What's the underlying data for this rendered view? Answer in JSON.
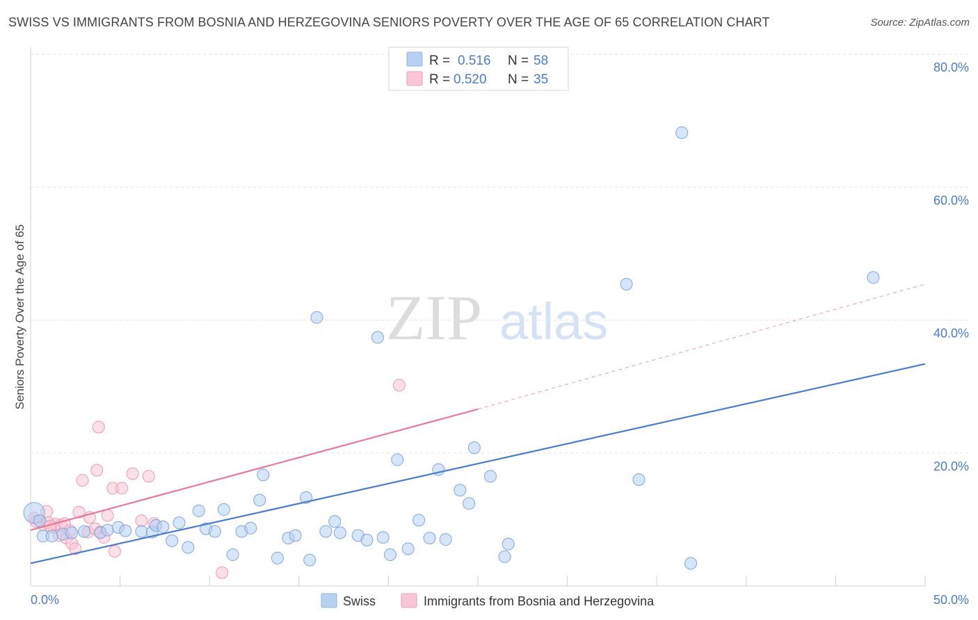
{
  "title": "SWISS VS IMMIGRANTS FROM BOSNIA AND HERZEGOVINA SENIORS POVERTY OVER THE AGE OF 65 CORRELATION CHART",
  "source": "Source: ZipAtlas.com",
  "watermark": {
    "zip": "ZIP",
    "atlas": "atlas"
  },
  "colors": {
    "swiss": "#4a7cc9",
    "bosnia": "#e8799d",
    "swiss_fill": "#b7d0f2",
    "bosnia_fill": "#f8c6d5",
    "axis_text": "#4a7cc9"
  },
  "chart_data": {
    "type": "scatter",
    "title": "SWISS VS IMMIGRANTS FROM BOSNIA AND HERZEGOVINA SENIORS POVERTY OVER THE AGE OF 65 CORRELATION CHART",
    "xlabel": "",
    "ylabel": "Seniors Poverty Over the Age of 65",
    "xlim": [
      0,
      50
    ],
    "ylim": [
      0,
      80
    ],
    "x_tick_labels": [
      "0.0%",
      "50.0%"
    ],
    "y_ticks": [
      20,
      40,
      60,
      80
    ],
    "y_tick_labels": [
      "20.0%",
      "40.0%",
      "60.0%",
      "80.0%"
    ],
    "grid": true,
    "legend_position": "top-center",
    "stats": [
      {
        "series": "Swiss",
        "r_label": "R =",
        "r": "0.516",
        "n_label": "N =",
        "n": "58"
      },
      {
        "series": "Immigrants from Bosnia and Herzegovina",
        "r_label": "R =",
        "r": "0.520",
        "n_label": "N =",
        "n": "35"
      }
    ],
    "series": [
      {
        "name": "Swiss",
        "color": "#4a7cc9",
        "trend": {
          "x": [
            0,
            50
          ],
          "y": [
            3.4,
            33.4
          ],
          "dashed_from": null
        },
        "points": [
          [
            0.2,
            11.0
          ],
          [
            0.7,
            7.5
          ],
          [
            1.2,
            7.5
          ],
          [
            1.8,
            7.8
          ],
          [
            2.3,
            8.0
          ],
          [
            3.0,
            8.2
          ],
          [
            3.9,
            8.0
          ],
          [
            4.3,
            8.4
          ],
          [
            4.9,
            8.8
          ],
          [
            5.3,
            8.3
          ],
          [
            6.2,
            8.2
          ],
          [
            6.8,
            8.1
          ],
          [
            7.0,
            9.1
          ],
          [
            7.4,
            8.9
          ],
          [
            7.9,
            6.8
          ],
          [
            8.3,
            9.5
          ],
          [
            8.8,
            5.8
          ],
          [
            9.4,
            11.3
          ],
          [
            9.8,
            8.6
          ],
          [
            10.3,
            8.2
          ],
          [
            10.8,
            11.5
          ],
          [
            11.3,
            4.7
          ],
          [
            11.8,
            8.2
          ],
          [
            12.3,
            8.7
          ],
          [
            12.8,
            12.9
          ],
          [
            13.0,
            16.7
          ],
          [
            13.8,
            4.2
          ],
          [
            14.4,
            7.2
          ],
          [
            14.8,
            7.6
          ],
          [
            15.4,
            13.3
          ],
          [
            15.6,
            3.9
          ],
          [
            16.0,
            40.4
          ],
          [
            16.5,
            8.2
          ],
          [
            17.0,
            9.7
          ],
          [
            17.3,
            8.0
          ],
          [
            18.3,
            7.6
          ],
          [
            18.8,
            6.9
          ],
          [
            19.4,
            37.4
          ],
          [
            19.7,
            7.3
          ],
          [
            20.1,
            4.7
          ],
          [
            20.5,
            19.0
          ],
          [
            21.1,
            5.6
          ],
          [
            21.7,
            9.9
          ],
          [
            22.3,
            7.2
          ],
          [
            22.8,
            17.5
          ],
          [
            23.2,
            7.0
          ],
          [
            24.0,
            14.4
          ],
          [
            24.5,
            12.4
          ],
          [
            24.8,
            20.8
          ],
          [
            25.7,
            16.5
          ],
          [
            26.5,
            4.4
          ],
          [
            26.7,
            6.3
          ],
          [
            33.3,
            45.4
          ],
          [
            34.0,
            16.0
          ],
          [
            36.4,
            68.2
          ],
          [
            36.9,
            3.4
          ],
          [
            47.1,
            46.4
          ],
          [
            0.5,
            9.8
          ]
        ]
      },
      {
        "name": "Immigrants from Bosnia and Herzegovina",
        "color": "#e8799d",
        "trend": {
          "x": [
            0,
            25,
            50
          ],
          "y": [
            8.4,
            26.6,
            45.4
          ],
          "dashed_from": 25
        },
        "points": [
          [
            0.2,
            10.2
          ],
          [
            0.5,
            9.8
          ],
          [
            0.7,
            9.2
          ],
          [
            0.9,
            11.2
          ],
          [
            1.0,
            9.5
          ],
          [
            1.3,
            8.8
          ],
          [
            1.4,
            9.3
          ],
          [
            1.6,
            7.6
          ],
          [
            1.7,
            9.1
          ],
          [
            1.9,
            9.4
          ],
          [
            2.0,
            7.2
          ],
          [
            2.2,
            8.3
          ],
          [
            2.3,
            6.4
          ],
          [
            2.5,
            5.6
          ],
          [
            2.7,
            11.1
          ],
          [
            2.9,
            15.9
          ],
          [
            3.2,
            8.1
          ],
          [
            3.3,
            10.3
          ],
          [
            3.6,
            8.6
          ],
          [
            3.7,
            17.4
          ],
          [
            3.8,
            23.9
          ],
          [
            3.9,
            8.1
          ],
          [
            4.1,
            7.3
          ],
          [
            4.3,
            10.6
          ],
          [
            4.6,
            14.7
          ],
          [
            4.7,
            5.2
          ],
          [
            5.1,
            14.7
          ],
          [
            5.7,
            16.9
          ],
          [
            6.2,
            9.8
          ],
          [
            6.6,
            16.5
          ],
          [
            6.9,
            9.4
          ],
          [
            10.7,
            2.0
          ],
          [
            20.6,
            30.2
          ],
          [
            0.3,
            9.7
          ],
          [
            1.1,
            9.0
          ]
        ]
      }
    ]
  },
  "bottom_legend": [
    {
      "label": "Swiss"
    },
    {
      "label": "Immigrants from Bosnia and Herzegovina"
    }
  ]
}
